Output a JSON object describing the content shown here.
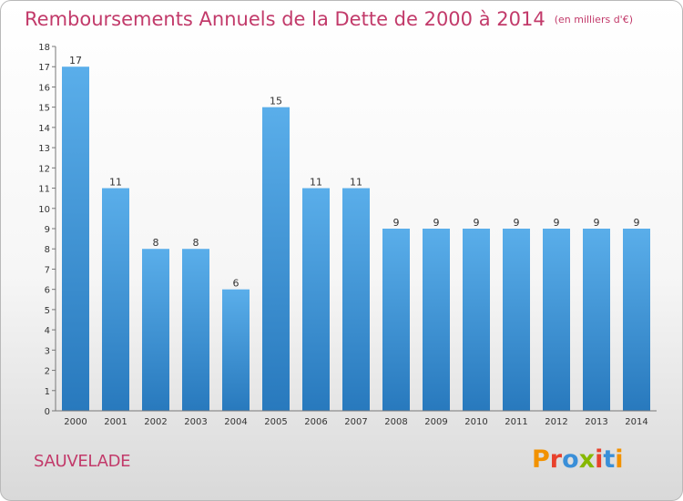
{
  "title": "Remboursements Annuels de la Dette de 2000 à 2014",
  "unit": "(en milliers d'€)",
  "commune": "SAUVELADE",
  "logo": {
    "text": "Proxiti",
    "colors": [
      "#f29200",
      "#e8412c",
      "#3a8fd8",
      "#86b800",
      "#e8412c",
      "#3a8fd8",
      "#f29200"
    ]
  },
  "colors": {
    "title": "#c23a6a",
    "bar_top": "#5aaeea",
    "bar_bottom": "#2879bd"
  },
  "chart_data": {
    "type": "bar",
    "categories": [
      "2000",
      "2001",
      "2002",
      "2003",
      "2004",
      "2005",
      "2006",
      "2007",
      "2008",
      "2009",
      "2010",
      "2011",
      "2012",
      "2013",
      "2014"
    ],
    "values": [
      17,
      11,
      8,
      8,
      6,
      15,
      11,
      11,
      9,
      9,
      9,
      9,
      9,
      9,
      9
    ],
    "data_labels": [
      "17",
      "11",
      "8",
      "8",
      "6",
      "15",
      "11",
      "11",
      "9",
      "9",
      "9",
      "9",
      "9",
      "9",
      "9"
    ],
    "y_ticks": [
      "0",
      "1",
      "2",
      "3",
      "4",
      "5",
      "6",
      "7",
      "8",
      "9",
      "10",
      "11",
      "12",
      "13",
      "14",
      "15",
      "16",
      "17",
      "18"
    ],
    "ylim": [
      0,
      18
    ],
    "grid": false,
    "legend": "none"
  }
}
